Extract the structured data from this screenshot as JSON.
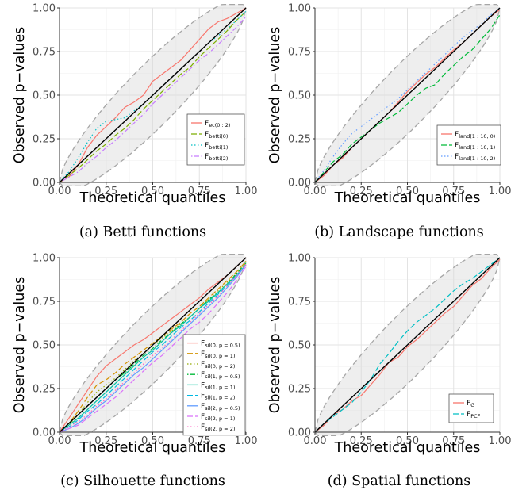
{
  "chart_data": [
    {
      "type": "line",
      "panel": "a",
      "caption": "(a) Betti functions",
      "xlabel": "Theoretical quantiles",
      "ylabel": "Observed p−values",
      "xlim": [
        0,
        1
      ],
      "ylim": [
        0,
        1
      ],
      "xticks": [
        "0.00",
        "0.25",
        "0.50",
        "0.75",
        "1.00"
      ],
      "yticks": [
        "0.00",
        "0.25",
        "0.50",
        "0.75",
        "1.00"
      ],
      "grid": true,
      "legend_position": "bottom-right",
      "series": [
        {
          "name": "F",
          "sub": "ec(0 : 2)",
          "color": "#f8766d",
          "dash": "solid",
          "x": [
            0,
            0.05,
            0.1,
            0.15,
            0.2,
            0.25,
            0.3,
            0.35,
            0.4,
            0.45,
            0.5,
            0.55,
            0.6,
            0.65,
            0.7,
            0.75,
            0.8,
            0.85,
            0.9,
            0.95,
            1
          ],
          "y": [
            0,
            0.03,
            0.1,
            0.2,
            0.27,
            0.32,
            0.37,
            0.43,
            0.46,
            0.5,
            0.58,
            0.62,
            0.66,
            0.7,
            0.76,
            0.82,
            0.88,
            0.92,
            0.94,
            0.97,
            1
          ]
        },
        {
          "name": "F",
          "sub": "betti(0)",
          "color": "#7cae00",
          "dash": "longdash",
          "x": [
            0,
            0.05,
            0.1,
            0.15,
            0.2,
            0.25,
            0.3,
            0.35,
            0.4,
            0.45,
            0.5,
            0.55,
            0.6,
            0.65,
            0.7,
            0.75,
            0.8,
            0.85,
            0.9,
            0.95,
            1
          ],
          "y": [
            0,
            0.04,
            0.08,
            0.13,
            0.18,
            0.22,
            0.27,
            0.31,
            0.36,
            0.42,
            0.47,
            0.52,
            0.57,
            0.62,
            0.66,
            0.72,
            0.77,
            0.82,
            0.87,
            0.93,
            0.98
          ]
        },
        {
          "name": "F",
          "sub": "betti(1)",
          "color": "#00bfc4",
          "dash": "dotted",
          "x": [
            0,
            0.05,
            0.1,
            0.15,
            0.2,
            0.25,
            0.3,
            0.35,
            0.4,
            0.45,
            0.5,
            0.55,
            0.6,
            0.65,
            0.7,
            0.75,
            0.8,
            0.85,
            0.9,
            0.95,
            1
          ],
          "y": [
            0,
            0.06,
            0.14,
            0.23,
            0.31,
            0.35,
            0.36,
            0.37,
            0.41,
            0.45,
            0.5,
            0.55,
            0.6,
            0.65,
            0.7,
            0.75,
            0.8,
            0.84,
            0.88,
            0.93,
            0.98
          ]
        },
        {
          "name": "F",
          "sub": "betti(2)",
          "color": "#c77cff",
          "dash": "dotdash",
          "x": [
            0,
            0.05,
            0.1,
            0.15,
            0.2,
            0.25,
            0.3,
            0.35,
            0.4,
            0.45,
            0.5,
            0.55,
            0.6,
            0.65,
            0.7,
            0.75,
            0.8,
            0.85,
            0.9,
            0.95,
            1
          ],
          "y": [
            0,
            0.03,
            0.06,
            0.11,
            0.15,
            0.2,
            0.24,
            0.29,
            0.34,
            0.39,
            0.45,
            0.5,
            0.55,
            0.6,
            0.65,
            0.7,
            0.74,
            0.79,
            0.84,
            0.89,
            0.95
          ]
        }
      ]
    },
    {
      "type": "line",
      "panel": "b",
      "caption": "(b) Landscape functions",
      "xlabel": "Theoretical quantiles",
      "ylabel": "Observed p−values",
      "xlim": [
        0,
        1
      ],
      "ylim": [
        0,
        1
      ],
      "xticks": [
        "0.00",
        "0.25",
        "0.50",
        "0.75",
        "1.00"
      ],
      "yticks": [
        "0.00",
        "0.25",
        "0.50",
        "0.75",
        "1.00"
      ],
      "grid": true,
      "legend_position": "bottom-right",
      "series": [
        {
          "name": "F",
          "sub": "land(1 : 10, 0)",
          "color": "#f8766d",
          "dash": "solid",
          "x": [
            0,
            0.05,
            0.1,
            0.15,
            0.2,
            0.25,
            0.3,
            0.35,
            0.4,
            0.45,
            0.5,
            0.55,
            0.6,
            0.65,
            0.7,
            0.75,
            0.8,
            0.85,
            0.9,
            0.95,
            1
          ],
          "y": [
            0,
            0.04,
            0.1,
            0.14,
            0.2,
            0.25,
            0.3,
            0.35,
            0.4,
            0.46,
            0.52,
            0.57,
            0.62,
            0.66,
            0.71,
            0.76,
            0.8,
            0.85,
            0.9,
            0.95,
            0.99
          ]
        },
        {
          "name": "F",
          "sub": "land(1 : 10, 1)",
          "color": "#00ba38",
          "dash": "longdash",
          "x": [
            0,
            0.05,
            0.1,
            0.15,
            0.2,
            0.25,
            0.3,
            0.35,
            0.4,
            0.45,
            0.5,
            0.55,
            0.6,
            0.65,
            0.7,
            0.75,
            0.8,
            0.85,
            0.9,
            0.95,
            1
          ],
          "y": [
            0,
            0.06,
            0.12,
            0.16,
            0.22,
            0.26,
            0.3,
            0.34,
            0.37,
            0.4,
            0.45,
            0.5,
            0.54,
            0.56,
            0.62,
            0.67,
            0.72,
            0.76,
            0.82,
            0.88,
            0.96
          ]
        },
        {
          "name": "F",
          "sub": "land(1 : 10, 2)",
          "color": "#619cff",
          "dash": "dotted",
          "x": [
            0,
            0.05,
            0.1,
            0.15,
            0.2,
            0.25,
            0.3,
            0.35,
            0.4,
            0.45,
            0.5,
            0.55,
            0.6,
            0.65,
            0.7,
            0.75,
            0.8,
            0.85,
            0.9,
            0.95,
            1
          ],
          "y": [
            0,
            0.07,
            0.15,
            0.22,
            0.28,
            0.32,
            0.36,
            0.4,
            0.44,
            0.48,
            0.53,
            0.58,
            0.63,
            0.68,
            0.73,
            0.78,
            0.83,
            0.87,
            0.91,
            0.96,
            1
          ]
        }
      ]
    },
    {
      "type": "line",
      "panel": "c",
      "caption": "(c) Silhouette functions",
      "xlabel": "Theoretical quantiles",
      "ylabel": "Observed p−values",
      "xlim": [
        0,
        1
      ],
      "ylim": [
        0,
        1
      ],
      "xticks": [
        "0.00",
        "0.25",
        "0.50",
        "0.75",
        "1.00"
      ],
      "yticks": [
        "0.00",
        "0.25",
        "0.50",
        "0.75",
        "1.00"
      ],
      "grid": true,
      "legend_position": "bottom-right",
      "series": [
        {
          "name": "F",
          "sub": "sil(0, p = 0.5)",
          "color": "#f8766d",
          "dash": "solid",
          "x": [
            0,
            0.05,
            0.1,
            0.15,
            0.2,
            0.25,
            0.3,
            0.35,
            0.4,
            0.45,
            0.5,
            0.55,
            0.6,
            0.65,
            0.7,
            0.75,
            0.8,
            0.85,
            0.9,
            0.95,
            1
          ],
          "y": [
            0,
            0.08,
            0.16,
            0.24,
            0.32,
            0.38,
            0.42,
            0.46,
            0.5,
            0.53,
            0.57,
            0.61,
            0.65,
            0.69,
            0.73,
            0.77,
            0.82,
            0.86,
            0.9,
            0.95,
            1
          ]
        },
        {
          "name": "F",
          "sub": "sil(0, p = 1)",
          "color": "#d39200",
          "dash": "longdash",
          "x": [
            0,
            0.05,
            0.1,
            0.15,
            0.2,
            0.25,
            0.3,
            0.35,
            0.4,
            0.45,
            0.5,
            0.55,
            0.6,
            0.65,
            0.7,
            0.75,
            0.8,
            0.85,
            0.9,
            0.95,
            1
          ],
          "y": [
            0,
            0.05,
            0.12,
            0.2,
            0.27,
            0.3,
            0.34,
            0.39,
            0.43,
            0.47,
            0.51,
            0.55,
            0.59,
            0.63,
            0.68,
            0.72,
            0.77,
            0.82,
            0.87,
            0.92,
            0.98
          ]
        },
        {
          "name": "F",
          "sub": "sil(0, p = 2)",
          "color": "#93aa00",
          "dash": "dotted",
          "x": [
            0,
            0.05,
            0.1,
            0.15,
            0.2,
            0.25,
            0.3,
            0.35,
            0.4,
            0.45,
            0.5,
            0.55,
            0.6,
            0.65,
            0.7,
            0.75,
            0.8,
            0.85,
            0.9,
            0.95,
            1
          ],
          "y": [
            0,
            0.04,
            0.1,
            0.17,
            0.23,
            0.27,
            0.31,
            0.36,
            0.41,
            0.45,
            0.5,
            0.54,
            0.58,
            0.62,
            0.66,
            0.71,
            0.76,
            0.81,
            0.86,
            0.91,
            0.97
          ]
        },
        {
          "name": "F",
          "sub": "sil(1, p = 0.5)",
          "color": "#00ba38",
          "dash": "dotdash",
          "x": [
            0,
            0.05,
            0.1,
            0.15,
            0.2,
            0.25,
            0.3,
            0.35,
            0.4,
            0.45,
            0.5,
            0.55,
            0.6,
            0.65,
            0.7,
            0.75,
            0.8,
            0.85,
            0.9,
            0.95,
            1
          ],
          "y": [
            0,
            0.05,
            0.1,
            0.15,
            0.2,
            0.25,
            0.3,
            0.34,
            0.39,
            0.44,
            0.48,
            0.53,
            0.57,
            0.62,
            0.66,
            0.71,
            0.76,
            0.8,
            0.85,
            0.91,
            0.97
          ]
        },
        {
          "name": "F",
          "sub": "sil(1, p = 1)",
          "color": "#00c19f",
          "dash": "solid",
          "x": [
            0,
            0.05,
            0.1,
            0.15,
            0.2,
            0.25,
            0.3,
            0.35,
            0.4,
            0.45,
            0.5,
            0.55,
            0.6,
            0.65,
            0.7,
            0.75,
            0.8,
            0.85,
            0.9,
            0.95,
            1
          ],
          "y": [
            0,
            0.04,
            0.08,
            0.13,
            0.18,
            0.23,
            0.28,
            0.33,
            0.38,
            0.43,
            0.47,
            0.52,
            0.57,
            0.61,
            0.66,
            0.71,
            0.75,
            0.8,
            0.85,
            0.9,
            0.96
          ]
        },
        {
          "name": "F",
          "sub": "sil(1, p = 2)",
          "color": "#00b9e3",
          "dash": "longdash",
          "x": [
            0,
            0.05,
            0.1,
            0.15,
            0.2,
            0.25,
            0.3,
            0.35,
            0.4,
            0.45,
            0.5,
            0.55,
            0.6,
            0.65,
            0.7,
            0.75,
            0.8,
            0.85,
            0.9,
            0.95,
            1
          ],
          "y": [
            0,
            0.03,
            0.07,
            0.12,
            0.16,
            0.21,
            0.26,
            0.31,
            0.36,
            0.41,
            0.46,
            0.5,
            0.55,
            0.6,
            0.64,
            0.69,
            0.74,
            0.79,
            0.84,
            0.9,
            0.96
          ]
        },
        {
          "name": "F",
          "sub": "sil(2, p = 0.5)",
          "color": "#619cff",
          "dash": "solid",
          "x": [
            0,
            0.05,
            0.1,
            0.15,
            0.2,
            0.25,
            0.3,
            0.35,
            0.4,
            0.45,
            0.5,
            0.55,
            0.6,
            0.65,
            0.7,
            0.75,
            0.8,
            0.85,
            0.9,
            0.95,
            1
          ],
          "y": [
            0,
            0.02,
            0.05,
            0.09,
            0.14,
            0.18,
            0.23,
            0.28,
            0.33,
            0.37,
            0.42,
            0.47,
            0.52,
            0.57,
            0.62,
            0.67,
            0.72,
            0.77,
            0.83,
            0.89,
            0.96
          ]
        },
        {
          "name": "F",
          "sub": "sil(2, p = 1)",
          "color": "#db72fb",
          "dash": "longdash",
          "x": [
            0,
            0.05,
            0.1,
            0.15,
            0.2,
            0.25,
            0.3,
            0.35,
            0.4,
            0.45,
            0.5,
            0.55,
            0.6,
            0.65,
            0.7,
            0.75,
            0.8,
            0.85,
            0.9,
            0.95,
            1
          ],
          "y": [
            0,
            0.02,
            0.04,
            0.08,
            0.12,
            0.16,
            0.2,
            0.25,
            0.3,
            0.35,
            0.4,
            0.44,
            0.49,
            0.54,
            0.59,
            0.63,
            0.68,
            0.74,
            0.8,
            0.87,
            0.95
          ]
        },
        {
          "name": "F",
          "sub": "sil(2, p = 2)",
          "color": "#ff61c3",
          "dash": "dotted",
          "x": [
            0,
            0.05,
            0.1,
            0.15,
            0.2,
            0.25,
            0.3,
            0.35,
            0.4,
            0.45,
            0.5,
            0.55,
            0.6,
            0.65,
            0.7,
            0.75,
            0.8,
            0.85,
            0.9,
            0.95,
            1
          ],
          "y": [
            0,
            0.03,
            0.06,
            0.1,
            0.15,
            0.19,
            0.24,
            0.29,
            0.34,
            0.39,
            0.44,
            0.48,
            0.53,
            0.58,
            0.63,
            0.68,
            0.73,
            0.78,
            0.84,
            0.9,
            0.96
          ]
        }
      ]
    },
    {
      "type": "line",
      "panel": "d",
      "caption": "(d) Spatial functions",
      "xlabel": "Theoretical quantiles",
      "ylabel": "Observed p−values",
      "xlim": [
        0,
        1
      ],
      "ylim": [
        0,
        1
      ],
      "xticks": [
        "0.00",
        "0.25",
        "0.50",
        "0.75",
        "1.00"
      ],
      "yticks": [
        "0.00",
        "0.25",
        "0.50",
        "0.75",
        "1.00"
      ],
      "grid": true,
      "legend_position": "bottom-right",
      "series": [
        {
          "name": "F",
          "sub": "G",
          "color": "#f8766d",
          "dash": "solid",
          "x": [
            0,
            0.05,
            0.1,
            0.15,
            0.2,
            0.25,
            0.3,
            0.35,
            0.4,
            0.45,
            0.5,
            0.55,
            0.6,
            0.65,
            0.7,
            0.75,
            0.8,
            0.85,
            0.9,
            0.95,
            1
          ],
          "y": [
            0,
            0.04,
            0.1,
            0.13,
            0.18,
            0.21,
            0.27,
            0.33,
            0.4,
            0.43,
            0.49,
            0.53,
            0.58,
            0.63,
            0.68,
            0.72,
            0.78,
            0.84,
            0.88,
            0.94,
            0.99
          ]
        },
        {
          "name": "F",
          "sub": "PCF",
          "color": "#00bfc4",
          "dash": "longdash",
          "x": [
            0,
            0.05,
            0.1,
            0.15,
            0.2,
            0.25,
            0.3,
            0.35,
            0.4,
            0.45,
            0.5,
            0.55,
            0.6,
            0.65,
            0.7,
            0.75,
            0.8,
            0.85,
            0.9,
            0.95,
            1
          ],
          "y": [
            0,
            0.05,
            0.09,
            0.13,
            0.17,
            0.23,
            0.3,
            0.39,
            0.45,
            0.52,
            0.58,
            0.63,
            0.67,
            0.71,
            0.76,
            0.81,
            0.85,
            0.88,
            0.92,
            0.96,
            1
          ]
        }
      ]
    }
  ]
}
